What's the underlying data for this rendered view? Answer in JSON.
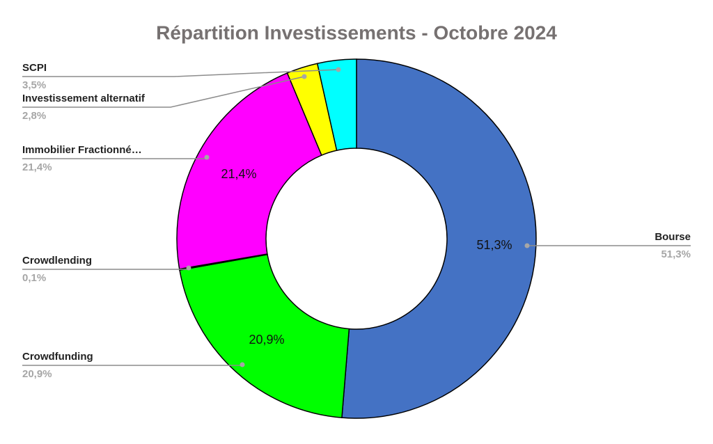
{
  "chart_data": {
    "type": "donut",
    "title": "Répartition Investissements - Octobre 2024",
    "categories": [
      "Bourse",
      "Crowdfunding",
      "Crowdlending",
      "Immobilier Fractionné…",
      "Investissement alternatif",
      "SCPI"
    ],
    "values": [
      51.3,
      20.9,
      0.1,
      21.4,
      2.8,
      3.5
    ],
    "value_labels": [
      "51,3%",
      "20,9%",
      "0,1%",
      "21,4%",
      "2,8%",
      "3,5%"
    ],
    "colors": [
      "#4472c4",
      "#00ff00",
      "#1f1f1f",
      "#ff00ff",
      "#ffff00",
      "#00ffff"
    ]
  }
}
